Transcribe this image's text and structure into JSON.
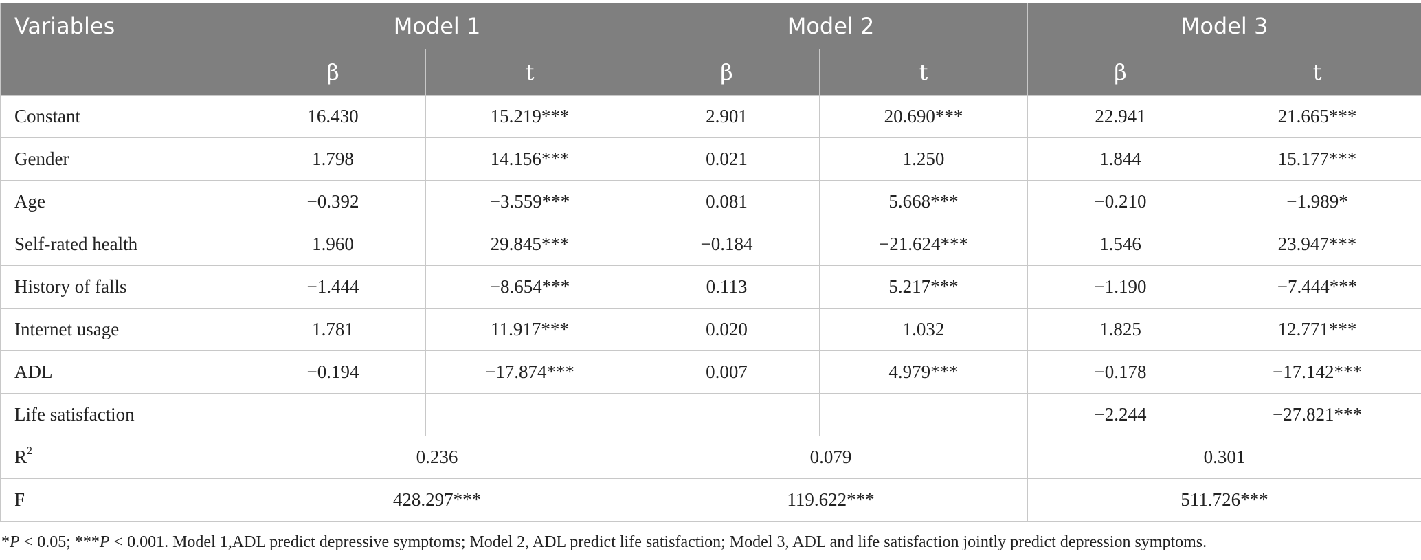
{
  "table": {
    "header": {
      "variables": "Variables",
      "models": [
        "Model 1",
        "Model 2",
        "Model 3"
      ],
      "beta": "β",
      "t": "t"
    },
    "rows": [
      {
        "label": "Constant",
        "cells": [
          "16.430",
          "15.219***",
          "2.901",
          "20.690***",
          "22.941",
          "21.665***"
        ]
      },
      {
        "label": "Gender",
        "cells": [
          "1.798",
          "14.156***",
          "0.021",
          "1.250",
          "1.844",
          "15.177***"
        ]
      },
      {
        "label": "Age",
        "cells": [
          "−0.392",
          "−3.559***",
          "0.081",
          "5.668***",
          "−0.210",
          "−1.989*"
        ]
      },
      {
        "label": "Self-rated health",
        "cells": [
          "1.960",
          "29.845***",
          "−0.184",
          "−21.624***",
          "1.546",
          "23.947***"
        ]
      },
      {
        "label": "History of falls",
        "cells": [
          "−1.444",
          "−8.654***",
          "0.113",
          "5.217***",
          "−1.190",
          "−7.444***"
        ]
      },
      {
        "label": "Internet usage",
        "cells": [
          "1.781",
          "11.917***",
          "0.020",
          "1.032",
          "1.825",
          "12.771***"
        ]
      },
      {
        "label": "ADL",
        "cells": [
          "−0.194",
          "−17.874***",
          "0.007",
          "4.979***",
          "−0.178",
          "−17.142***"
        ]
      },
      {
        "label": "Life satisfaction",
        "cells": [
          "",
          "",
          "",
          "",
          "−2.244",
          "−27.821***"
        ]
      }
    ],
    "r2": {
      "label": "R",
      "sup": "2",
      "values": [
        "0.236",
        "0.079",
        "0.301"
      ]
    },
    "f": {
      "label": "F",
      "values": [
        "428.297***",
        "119.622***",
        "511.726***"
      ]
    }
  },
  "footnote": {
    "p1_prefix": "*",
    "p": "P",
    "p1_rest": " < 0.05; ***",
    "p2_rest": " < 0.001. Model 1,ADL predict depressive symptoms; Model 2, ADL predict life satisfaction; Model 3, ADL and life satisfaction jointly predict depression symptoms."
  }
}
